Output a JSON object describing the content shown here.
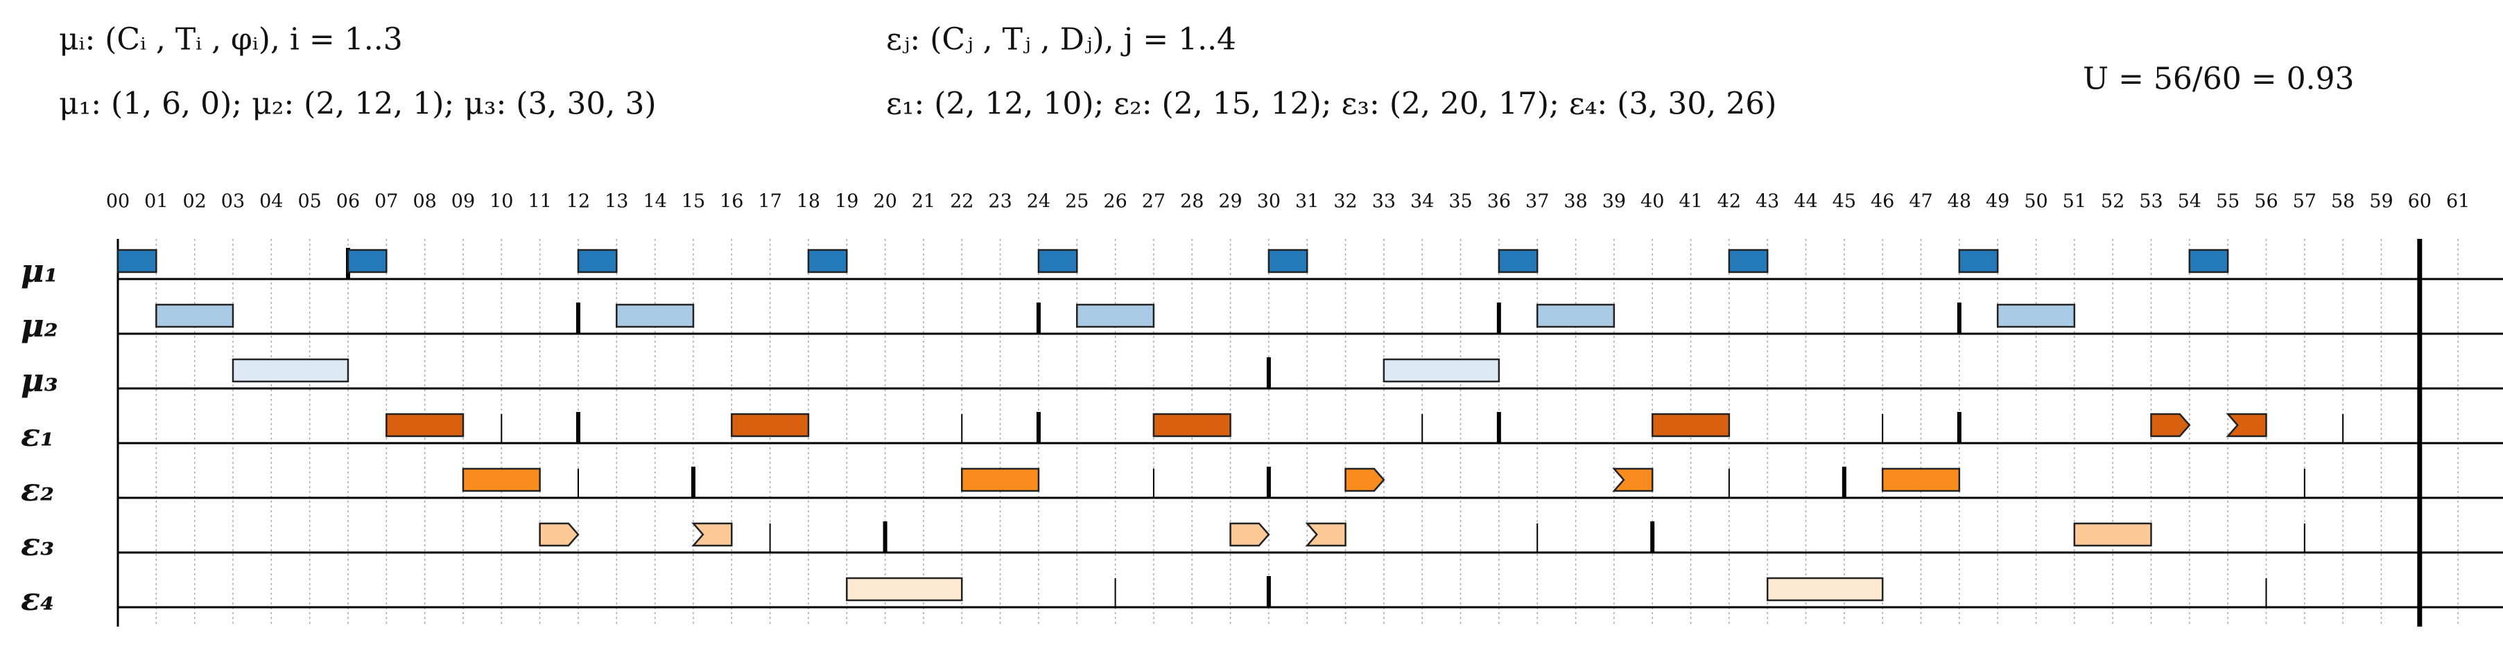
{
  "header": {
    "mu_def": "μᵢ: (Cᵢ , Tᵢ , φᵢ), i = 1..3",
    "mu_params": "μ₁: (1, 6, 0); μ₂: (2, 12, 1); μ₃: (3, 30, 3)",
    "eps_def": "εⱼ: (Cⱼ , Tⱼ , Dⱼ), j = 1..4",
    "eps_params": "ε₁: (2, 12, 10); ε₂: (2, 15, 12); ε₃: (2, 20, 17); ε₄: (3, 30, 26)",
    "utilization": "U = 56/60 = 0.93"
  },
  "time_labels": [
    "00",
    "01",
    "02",
    "03",
    "04",
    "05",
    "06",
    "07",
    "08",
    "09",
    "10",
    "11",
    "12",
    "13",
    "14",
    "15",
    "16",
    "17",
    "18",
    "19",
    "20",
    "21",
    "22",
    "23",
    "24",
    "25",
    "26",
    "27",
    "28",
    "29",
    "30",
    "31",
    "32",
    "33",
    "34",
    "35",
    "36",
    "37",
    "38",
    "39",
    "40",
    "41",
    "42",
    "43",
    "44",
    "45",
    "46",
    "47",
    "48",
    "49",
    "50",
    "51",
    "52",
    "53",
    "54",
    "55",
    "56",
    "57",
    "58",
    "59",
    "60",
    "61"
  ],
  "hyperperiod_end": 60,
  "rows": [
    {
      "label": "μ₁",
      "color": "#2479b8",
      "periods": [
        6
      ],
      "deadlines": [],
      "blocks": [
        {
          "start": 0,
          "end": 1
        },
        {
          "start": 6,
          "end": 7
        },
        {
          "start": 12,
          "end": 13
        },
        {
          "start": 18,
          "end": 19
        },
        {
          "start": 24,
          "end": 25
        },
        {
          "start": 30,
          "end": 31
        },
        {
          "start": 36,
          "end": 37
        },
        {
          "start": 42,
          "end": 43
        },
        {
          "start": 48,
          "end": 49
        },
        {
          "start": 54,
          "end": 55
        }
      ]
    },
    {
      "label": "μ₂",
      "color": "#a9cbe6",
      "periods": [
        12,
        24,
        36,
        48
      ],
      "deadlines": [],
      "blocks": [
        {
          "start": 1,
          "end": 3
        },
        {
          "start": 13,
          "end": 15
        },
        {
          "start": 25,
          "end": 27
        },
        {
          "start": 37,
          "end": 39
        },
        {
          "start": 49,
          "end": 51
        }
      ]
    },
    {
      "label": "μ₃",
      "color": "#ddeaf6",
      "periods": [
        30
      ],
      "deadlines": [],
      "blocks": [
        {
          "start": 3,
          "end": 6
        },
        {
          "start": 33,
          "end": 36
        }
      ]
    },
    {
      "label": "ε₁",
      "color": "#d9600f",
      "periods": [
        12,
        24,
        36,
        48
      ],
      "deadlines": [
        10,
        22,
        34,
        46,
        58
      ],
      "blocks": [
        {
          "start": 7,
          "end": 9
        },
        {
          "start": 16,
          "end": 18
        },
        {
          "start": 27,
          "end": 29
        },
        {
          "start": 40,
          "end": 42
        },
        {
          "start": 53,
          "end": 54,
          "shape": "arrow"
        },
        {
          "start": 55,
          "end": 56,
          "shape": "notch"
        }
      ]
    },
    {
      "label": "ε₂",
      "color": "#f98c1c",
      "periods": [
        15,
        30,
        45
      ],
      "deadlines": [
        12,
        27,
        42,
        57
      ],
      "blocks": [
        {
          "start": 9,
          "end": 11
        },
        {
          "start": 22,
          "end": 24
        },
        {
          "start": 32,
          "end": 33,
          "shape": "arrow"
        },
        {
          "start": 39,
          "end": 40,
          "shape": "notch"
        },
        {
          "start": 46,
          "end": 48
        }
      ]
    },
    {
      "label": "ε₃",
      "color": "#fdc996",
      "periods": [
        20,
        40
      ],
      "deadlines": [
        17,
        37,
        57
      ],
      "blocks": [
        {
          "start": 11,
          "end": 12,
          "shape": "arrow"
        },
        {
          "start": 15,
          "end": 16,
          "shape": "notch"
        },
        {
          "start": 29,
          "end": 30,
          "shape": "arrow"
        },
        {
          "start": 31,
          "end": 32,
          "shape": "notch"
        },
        {
          "start": 51,
          "end": 53
        }
      ]
    },
    {
      "label": "ε₄",
      "color": "#fde8d2",
      "periods": [
        30
      ],
      "deadlines": [
        26,
        56
      ],
      "blocks": [
        {
          "start": 19,
          "end": 22
        },
        {
          "start": 43,
          "end": 46
        }
      ]
    }
  ]
}
